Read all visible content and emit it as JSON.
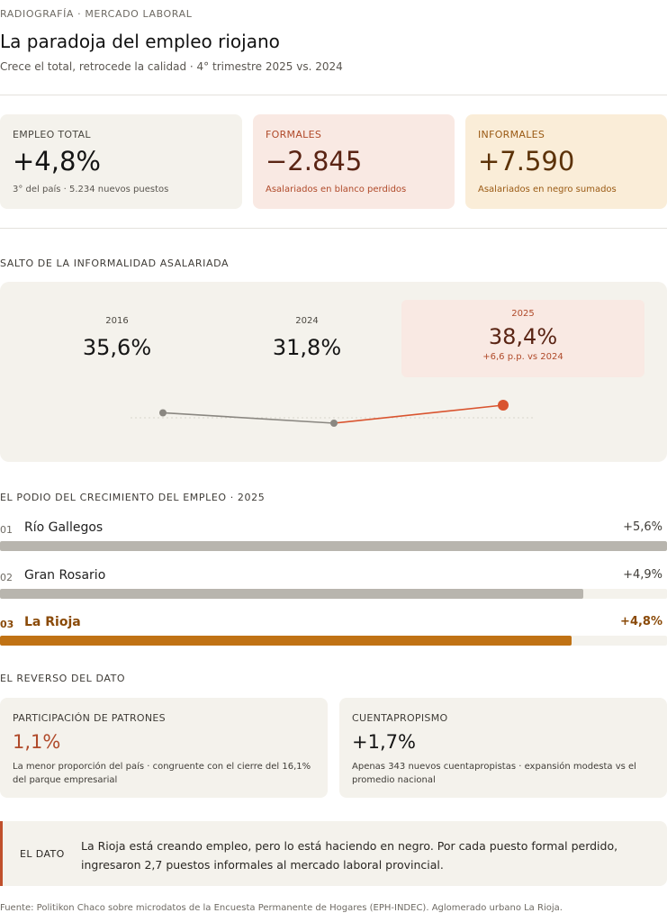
{
  "header": {
    "kicker": "RADIOGRAFÍA · MERCADO LABORAL",
    "title": "La paradoja del empleo riojano",
    "subtitle": "Crece el total, retrocede la calidad · 4° trimestre 2025 vs. 2024"
  },
  "kpis": {
    "total": {
      "label": "EMPLEO TOTAL",
      "value": "+4,8%",
      "note": "3° del país · 5.234 nuevos puestos"
    },
    "formales": {
      "label": "FORMALES",
      "value": "−2.845",
      "note": "Asalariados en blanco perdidos"
    },
    "informales": {
      "label": "INFORMALES",
      "value": "+7.590",
      "note": "Asalariados en negro sumados"
    }
  },
  "informality": {
    "section_label": "SALTO DE LA INFORMALIDAD ASALARIADA",
    "points": [
      {
        "year": "2016",
        "label": "35,6%"
      },
      {
        "year": "2024",
        "label": "31,8%"
      },
      {
        "year": "2025",
        "label": "38,4%",
        "delta": "+6,6 p.p. vs 2024"
      }
    ],
    "colors": {
      "past": "#8a8781",
      "current": "#d9542f"
    }
  },
  "ranking": {
    "section_label": "EL PODIO DEL CRECIMIENTO DEL EMPLEO · 2025",
    "rows": [
      {
        "rank": "01",
        "name": "Río Gallegos",
        "value_label": "+5,6%"
      },
      {
        "rank": "02",
        "name": "Gran Rosario",
        "value_label": "+4,9%"
      },
      {
        "rank": "03",
        "name": "La Rioja",
        "value_label": "+4,8%"
      }
    ]
  },
  "reverse": {
    "section_label": "EL REVERSO DEL DATO",
    "patrones": {
      "label": "PARTICIPACIÓN DE PATRONES",
      "value": "1,1%",
      "note": "La menor proporción del país · congruente con el cierre del 16,1% del parque empresarial"
    },
    "cuentapropismo": {
      "label": "CUENTAPROPISMO",
      "value": "+1,7%",
      "note": "Apenas 343 nuevos cuentapropistas · expansión modesta vs el promedio nacional"
    }
  },
  "dato": {
    "label": "EL DATO",
    "text": "La Rioja está creando empleo, pero lo está haciendo en negro. Por cada puesto formal perdido, ingresaron 2,7 puestos informales al mercado laboral provincial."
  },
  "source": "Fuente: Politikon Chaco sobre microdatos de la Encuesta Permanente de Hogares (EPH-INDEC). Aglomerado urbano La Rioja.",
  "chart_data": [
    {
      "type": "line",
      "title": "SALTO DE LA INFORMALIDAD ASALARIADA",
      "x": [
        "2016",
        "2024",
        "2025"
      ],
      "series": [
        {
          "values": [
            35.6,
            31.8,
            38.4
          ]
        }
      ],
      "xlabel": "",
      "ylabel": "",
      "grid": false,
      "highlight": "2025"
    },
    {
      "type": "bar",
      "orientation": "horizontal",
      "title": "EL PODIO DEL CRECIMIENTO DEL EMPLEO · 2025",
      "categories": [
        "Río Gallegos",
        "Gran Rosario",
        "La Rioja"
      ],
      "values": [
        5.6,
        4.9,
        4.8
      ],
      "xlim": [
        0,
        5.6
      ],
      "xlabel": "",
      "ylabel": "",
      "highlight": "La Rioja",
      "colors": {
        "default": "#b8b5ae",
        "highlight": "#c07214"
      }
    }
  ]
}
